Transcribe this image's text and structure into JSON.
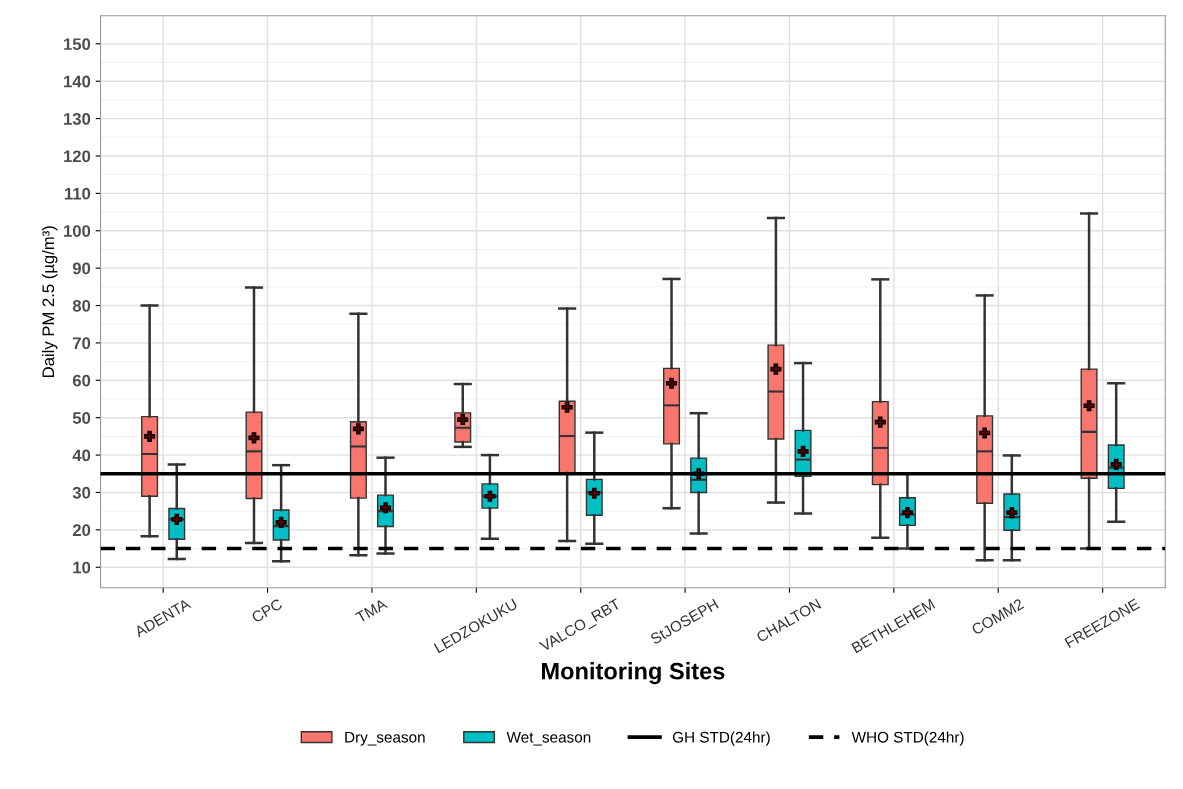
{
  "chart_data": {
    "type": "box",
    "xlabel": "Monitoring Sites",
    "ylabel": "Daily PM 2.5 (µg/m³)",
    "categories": [
      "ADENTA",
      "CPC",
      "TMA",
      "LEDZOKUKU",
      "VALCO_RBT",
      "StJOSEPH",
      "CHALTON",
      "BETHLEHEM",
      "COMM2",
      "FREEZONE"
    ],
    "ylim": [
      4.5,
      157.5
    ],
    "yticks": [
      10,
      20,
      30,
      40,
      50,
      60,
      70,
      80,
      90,
      100,
      110,
      120,
      130,
      140,
      150
    ],
    "grid": true,
    "legend": "bottom",
    "series": [
      {
        "name": "Dry_season",
        "color": "#f8766d",
        "boxes": [
          {
            "low": 18.3,
            "q1": 29,
            "median": 40.3,
            "q3": 50.3,
            "high": 80,
            "mean": 45
          },
          {
            "low": 16.5,
            "q1": 28.4,
            "median": 41,
            "q3": 51.5,
            "high": 84.8,
            "mean": 44.6
          },
          {
            "low": 13.2,
            "q1": 28.5,
            "median": 42.3,
            "q3": 48.9,
            "high": 77.8,
            "mean": 47
          },
          {
            "low": 42.2,
            "q1": 43.5,
            "median": 47.3,
            "q3": 51.3,
            "high": 59,
            "mean": 49.5
          },
          {
            "low": 17,
            "q1": 35.2,
            "median": 45.1,
            "q3": 54.4,
            "high": 79.2,
            "mean": 52.8
          },
          {
            "low": 25.8,
            "q1": 43,
            "median": 53.3,
            "q3": 63.2,
            "high": 87.1,
            "mean": 59.2
          },
          {
            "low": 27.3,
            "q1": 44.3,
            "median": 57,
            "q3": 69.4,
            "high": 103.4,
            "mean": 63
          },
          {
            "low": 17.9,
            "q1": 32.1,
            "median": 41.9,
            "q3": 54.3,
            "high": 87,
            "mean": 48.8
          },
          {
            "low": 11.9,
            "q1": 27.1,
            "median": 41,
            "q3": 50.5,
            "high": 82.7,
            "mean": 45.9
          },
          {
            "low": 15,
            "q1": 33.8,
            "median": 46.2,
            "q3": 63,
            "high": 104.6,
            "mean": 53.2
          }
        ]
      },
      {
        "name": "Wet_season",
        "color": "#00bfc4",
        "boxes": [
          {
            "low": 12.2,
            "q1": 17.5,
            "median": 22.8,
            "q3": 25.7,
            "high": 37.5,
            "mean": 22.8
          },
          {
            "low": 11.6,
            "q1": 17.3,
            "median": 21,
            "q3": 25.3,
            "high": 37.3,
            "mean": 22
          },
          {
            "low": 13.7,
            "q1": 20.9,
            "median": 25,
            "q3": 29.3,
            "high": 39.3,
            "mean": 25.9
          },
          {
            "low": 17.6,
            "q1": 25.8,
            "median": 29,
            "q3": 32.3,
            "high": 40,
            "mean": 29
          },
          {
            "low": 16.3,
            "q1": 23.9,
            "median": 30,
            "q3": 33.5,
            "high": 46,
            "mean": 29.8
          },
          {
            "low": 19,
            "q1": 30,
            "median": 33.4,
            "q3": 39.2,
            "high": 51.2,
            "mean": 35
          },
          {
            "low": 24.4,
            "q1": 34.3,
            "median": 38.8,
            "q3": 46.6,
            "high": 64.6,
            "mean": 41
          },
          {
            "low": 15,
            "q1": 21.2,
            "median": 24.1,
            "q3": 28.6,
            "high": 35,
            "mean": 24.6
          },
          {
            "low": 11.9,
            "q1": 19.9,
            "median": 23.4,
            "q3": 29.6,
            "high": 39.9,
            "mean": 24.6
          },
          {
            "low": 22.2,
            "q1": 31.1,
            "median": 36.6,
            "q3": 42.7,
            "high": 59.2,
            "mean": 37.5
          }
        ]
      }
    ],
    "ref_lines": [
      {
        "axis": "y",
        "value": 35,
        "label": "GH STD(24hr)",
        "color": "#000000",
        "line_style": "solid"
      },
      {
        "axis": "y",
        "value": 15,
        "label": "WHO STD(24hr)",
        "color": "#000000",
        "line_style": "dashed"
      }
    ]
  }
}
